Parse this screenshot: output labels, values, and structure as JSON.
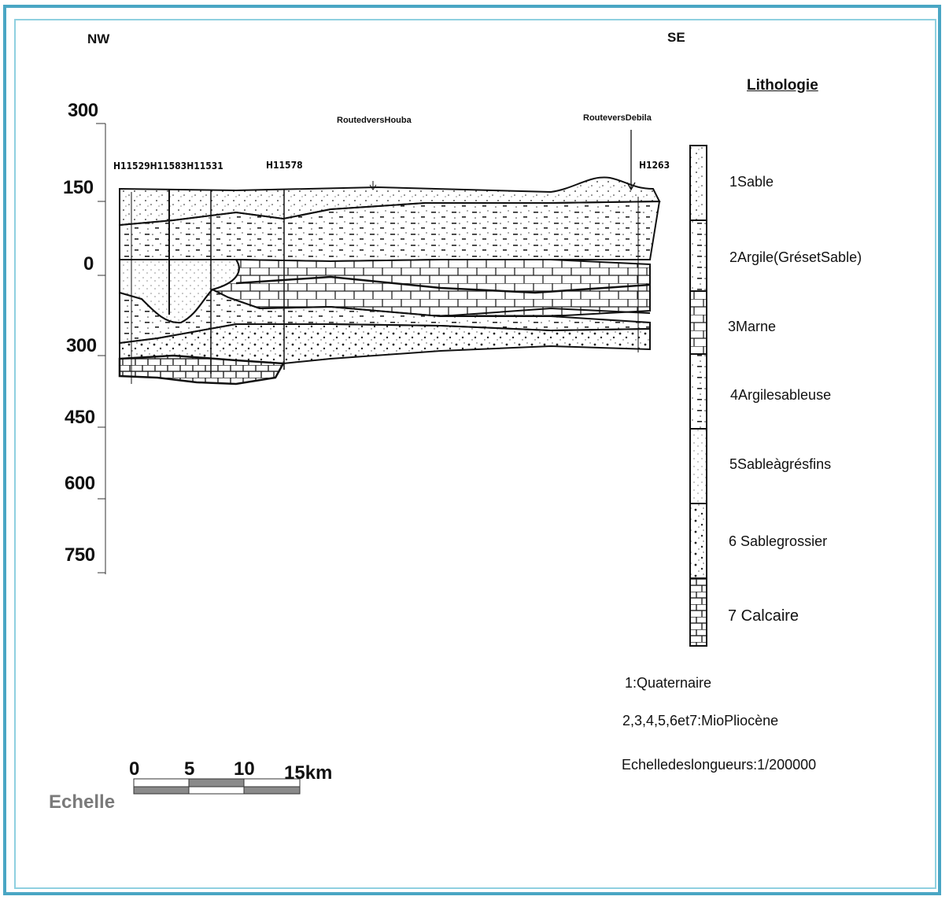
{
  "directions": {
    "left": "NW",
    "right": "SE"
  },
  "depth_axis": [
    "300",
    "150",
    "0",
    "300",
    "450",
    "600",
    "750"
  ],
  "wells": [
    "H11529H11583H11531",
    "H11578",
    "H1263"
  ],
  "roads": [
    "RoutedversHouba",
    "RouteversDebila"
  ],
  "legend": {
    "title": "Lithologie",
    "items": [
      {
        "label": "1Sable",
        "pattern": "dots"
      },
      {
        "label": "2Argile(GrésetSable)",
        "pattern": "dashes-dots"
      },
      {
        "label": "3Marne",
        "pattern": "bricks"
      },
      {
        "label": "4Argilesableuse",
        "pattern": "dashes"
      },
      {
        "label": "5Sableàgrésfins",
        "pattern": "fine-dots"
      },
      {
        "label": "6 Sablegrossier",
        "pattern": "coarse-dots"
      },
      {
        "label": "7 Calcaire",
        "pattern": "blocks"
      }
    ]
  },
  "notes": {
    "age1": "1:Quaternaire",
    "age2": "2,3,4,5,6et7:MioPliocène",
    "length_scale": "Echelledeslongueurs:1/200000"
  },
  "scale_bar": {
    "title": "Echelle",
    "ticks": [
      "0",
      "5",
      "10",
      "15km"
    ]
  },
  "colors": {
    "frame": "#4aa6c4",
    "frame_inner": "#8fd0e0",
    "ink": "#111111",
    "scale_fill": "#8a8a8a"
  }
}
